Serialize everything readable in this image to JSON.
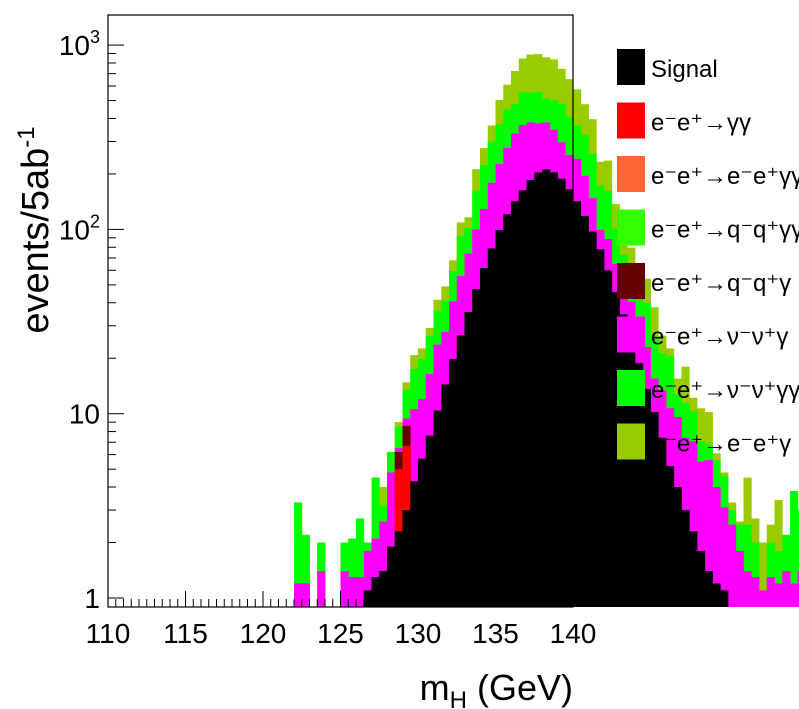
{
  "chart_data": {
    "type": "bar",
    "subtype": "stacked-histogram",
    "title": "",
    "xlabel": {
      "main": "m",
      "sub": "H",
      "rest": " (GeV)"
    },
    "ylabel": {
      "main": "events/5ab",
      "sup": "-1"
    },
    "xlim": [
      110,
      140
    ],
    "ylim": [
      1,
      1400
    ],
    "y_scale": "log",
    "bin_width": 0.5,
    "x_ticks": [
      "110",
      "115",
      "120",
      "125",
      "130",
      "135",
      "140"
    ],
    "x_tick_values": [
      110,
      115,
      120,
      125,
      130,
      135,
      140
    ],
    "y_ticks": [
      {
        "value": 1,
        "label": "1"
      },
      {
        "value": 10,
        "label": "10"
      },
      {
        "value": 100,
        "label": "10",
        "sup": "2"
      },
      {
        "value": 1000,
        "label": "10",
        "sup": "3"
      }
    ],
    "grid": false,
    "legend_position": "right",
    "stack_order": [
      "Signal",
      "ee->gg",
      "ee->eegg",
      "ee->qqgg",
      "ee->qqg",
      "ee->vvg",
      "ee->vvgg",
      "ee->eeg"
    ],
    "series": [
      {
        "key": "ee->eeg",
        "name": "e⁻e⁺→e⁻e⁺γ",
        "color": "#99cc00",
        "cumulative_top": [
          0,
          0,
          0,
          0,
          0,
          0,
          0,
          0,
          0,
          0,
          0,
          0,
          0,
          0,
          0,
          0,
          0,
          0,
          0,
          0,
          0,
          0,
          0,
          0,
          3.3,
          2.2,
          0,
          2.0,
          0,
          0,
          2.0,
          2.1,
          2.7,
          2.0,
          4.5,
          4.0,
          6.2,
          9.0,
          14.8,
          20.8,
          22.6,
          29.2,
          41.5,
          49.0,
          68.0,
          109.2,
          116.4,
          212.2,
          276.2,
          366.1,
          503.2,
          610.2,
          723.9,
          846.2,
          889.1,
          895.5,
          857.9,
          835.9,
          743.3,
          653.5,
          574.7,
          477.8,
          396.0,
          232.7,
          236.3,
          137.2,
          102.0,
          79.6,
          62.7,
          54.0,
          37.8,
          26.5,
          22.6,
          15.5,
          18.0,
          12.2,
          10.7,
          10.2,
          6.1,
          4.8,
          3.3,
          2.6,
          4.5,
          2.7,
          2.0,
          2.5,
          3.4,
          2.2,
          3.8,
          3.0
        ]
      },
      {
        "key": "ee->vvgg",
        "name": "e⁻e⁺→ν⁻ν⁺γγ",
        "color": "#00ff00",
        "cumulative_top": [
          0,
          0,
          0,
          0,
          0,
          0,
          0,
          0,
          0,
          0,
          0,
          0,
          0,
          0,
          0,
          0,
          0,
          0,
          0,
          0,
          0,
          0,
          0,
          0,
          3.3,
          2.2,
          0,
          2.0,
          0,
          0,
          2.0,
          2.1,
          2.7,
          2.0,
          4.5,
          3.2,
          6.2,
          8.5,
          13.5,
          17.5,
          19.8,
          26.4,
          36.3,
          41.0,
          59.5,
          92.0,
          102.0,
          162.5,
          223.8,
          299.4,
          371.2,
          448.0,
          477.2,
          554.5,
          551.7,
          559.2,
          512.6,
          500.4,
          480.6,
          408.4,
          366.5,
          325.5,
          257.2,
          173.4,
          161.6,
          100.8,
          72.6,
          58.3,
          46.3,
          39.9,
          26.1,
          21.3,
          20.6,
          12.8,
          11.4,
          10.3,
          7.1,
          6.8,
          5.6,
          4.6,
          3.0,
          2.5,
          2.5,
          2.0,
          0,
          2.0,
          1.8,
          2.2,
          3.8,
          3.0
        ]
      },
      {
        "key": "ee->vvg",
        "name": "e⁻e⁺→ν⁻ν⁺γ",
        "color": "#ff00ff",
        "cumulative_top": [
          0,
          0,
          0,
          0,
          0,
          0,
          0,
          0,
          0,
          0,
          0,
          0,
          0,
          0,
          0,
          0,
          0,
          0,
          0,
          0,
          0,
          0,
          0,
          0,
          1.2,
          1.2,
          0,
          1.4,
          0,
          0,
          1.4,
          1.3,
          1.3,
          1.8,
          2.1,
          2.6,
          4.8,
          6.5,
          9.4,
          10.6,
          12.0,
          16.4,
          23.7,
          27.8,
          40.7,
          55.8,
          74.0,
          99.6,
          129.2,
          179.1,
          226.0,
          276.7,
          331.3,
          368.9,
          381.2,
          375.9,
          380.3,
          347.2,
          297.1,
          252.7,
          241.3,
          195.5,
          147.9,
          99.4,
          88.7,
          64.9,
          51.0,
          40.4,
          29.1,
          23.0,
          15.5,
          13.4,
          10.7,
          9.6,
          7.4,
          7.1,
          5.5,
          5.6,
          4.0,
          3.1,
          2.5,
          1.8,
          1.4,
          1.3,
          1.1,
          1.3,
          1.2,
          1.4,
          1.2,
          1.4
        ]
      },
      {
        "key": "ee->qqg",
        "name": "e⁻e⁺→q⁻q⁺γ",
        "color": "#660000",
        "cumulative_top": [
          0,
          0,
          0,
          0,
          0,
          0,
          0,
          0,
          0,
          0,
          0,
          0,
          0,
          0,
          0,
          0,
          0,
          0,
          0,
          0,
          0,
          0,
          0,
          0,
          0,
          0,
          0,
          0,
          0,
          0,
          0,
          0,
          0,
          0,
          0,
          0,
          0,
          6.2,
          8.6,
          0,
          0,
          0,
          0,
          0,
          0,
          0,
          0,
          0,
          0,
          0,
          0,
          0,
          0,
          0,
          0,
          0,
          0,
          0,
          0,
          0,
          0,
          0,
          0,
          0,
          0,
          0,
          0,
          0,
          0,
          0,
          0,
          0,
          0,
          0,
          0,
          0,
          0,
          0,
          0,
          0,
          0,
          0,
          0,
          0,
          0,
          0,
          0,
          0,
          0,
          0
        ]
      },
      {
        "key": "ee->qqgg",
        "name": "e⁻e⁺→q⁻q⁺γγ",
        "color": "#33ff00",
        "cumulative_top": [
          0,
          0,
          0,
          0,
          0,
          0,
          0,
          0,
          0,
          0,
          0,
          0,
          0,
          0,
          0,
          0,
          0,
          0,
          0,
          0,
          0,
          0,
          0,
          0,
          0,
          0,
          0,
          0,
          0,
          0,
          0,
          0,
          0,
          0,
          0,
          0,
          0,
          0,
          0,
          0,
          0,
          0,
          0,
          0,
          0,
          0,
          0,
          0,
          0,
          0,
          0,
          0,
          0,
          0,
          0,
          0,
          0,
          0,
          0,
          0,
          0,
          0,
          0,
          0,
          0,
          0,
          0,
          0,
          0,
          0,
          0,
          0,
          0,
          0,
          0,
          0,
          0,
          0,
          0,
          0,
          0,
          0,
          0,
          0,
          0,
          0,
          0,
          0,
          0,
          0
        ]
      },
      {
        "key": "ee->eegg",
        "name": "e⁻e⁺→e⁻e⁺γγ",
        "color": "#ff6633",
        "cumulative_top": [
          0,
          0,
          0,
          0,
          0,
          0,
          0,
          0,
          0,
          0,
          0,
          0,
          0,
          0,
          0,
          0,
          0,
          0,
          0,
          0,
          0,
          0,
          0,
          0,
          0,
          0,
          0,
          0,
          0,
          0,
          0,
          0,
          0,
          0,
          0,
          0,
          0,
          0,
          0,
          0,
          0,
          0,
          0,
          0,
          0,
          0,
          0,
          0,
          0,
          0,
          0,
          0,
          0,
          0,
          0,
          0,
          0,
          0,
          0,
          0,
          0,
          0,
          0,
          0,
          0,
          0,
          0,
          0,
          0,
          0,
          0,
          0,
          0,
          0,
          0,
          0,
          0,
          0,
          0,
          0,
          0,
          0,
          0,
          0,
          0,
          0,
          0,
          0,
          0,
          0
        ]
      },
      {
        "key": "ee->gg",
        "name": "e⁻e⁺→γγ",
        "color": "#ff0000",
        "cumulative_top": [
          0,
          0,
          0,
          0,
          0,
          0,
          0,
          0,
          0,
          0,
          0,
          0,
          0,
          0,
          0,
          0,
          0,
          0,
          0,
          0,
          0,
          0,
          0,
          0,
          0,
          0,
          0,
          0,
          0,
          0,
          0,
          0,
          0,
          0,
          0,
          0,
          0,
          5.0,
          6.7,
          0,
          0,
          0,
          0,
          0,
          0,
          0,
          0,
          0,
          0,
          0,
          0,
          0,
          0,
          0,
          0,
          0,
          0,
          0,
          0,
          0,
          0,
          0,
          0,
          0,
          0,
          0,
          0,
          0,
          0,
          0,
          0,
          0,
          0,
          0,
          0,
          0,
          0,
          0,
          0,
          0,
          0,
          0,
          0,
          0,
          0,
          0,
          0,
          0,
          0,
          0
        ]
      },
      {
        "key": "Signal",
        "name": "Signal",
        "color": "#000000",
        "cumulative_top": [
          0,
          0,
          0,
          0,
          0,
          0,
          0,
          0,
          0,
          0,
          0,
          0,
          0,
          0,
          0,
          0,
          0,
          0,
          0,
          0,
          0,
          0,
          0,
          0,
          0,
          0,
          0,
          0,
          0,
          0,
          0,
          0,
          0,
          1.1,
          1.3,
          1.4,
          1.9,
          2.3,
          3.0,
          4.3,
          5.7,
          7.6,
          10.4,
          14.4,
          19.8,
          26.6,
          35.6,
          47.4,
          61.7,
          78.8,
          99.2,
          121.0,
          142.2,
          163.2,
          185.4,
          203.8,
          211.7,
          204.2,
          188.4,
          165.0,
          142.2,
          118.4,
          97.4,
          78.0,
          60.0,
          45.6,
          34.6,
          25.0,
          18.8,
          13.6,
          10.2,
          7.4,
          5.2,
          4.0,
          3.0,
          2.3,
          1.8,
          1.4,
          1.2,
          1.1,
          0,
          0,
          0,
          0,
          0,
          0,
          0,
          0,
          0,
          0
        ]
      }
    ]
  }
}
